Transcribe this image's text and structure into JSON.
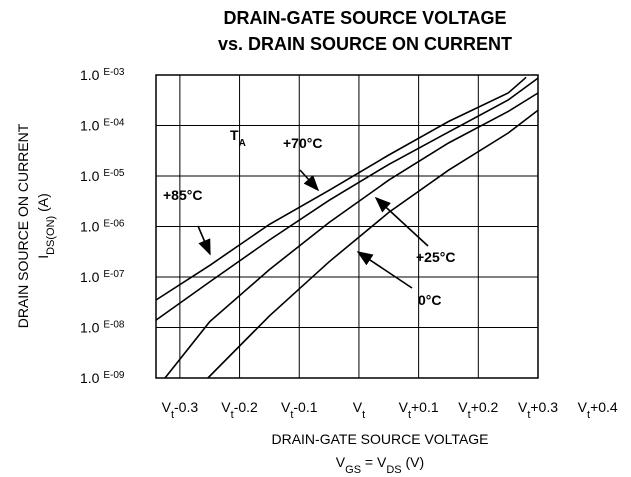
{
  "chart_data": {
    "type": "line",
    "title": [
      "DRAIN-GATE SOURCE VOLTAGE",
      "vs. DRAIN SOURCE ON CURRENT"
    ],
    "x_label": [
      "DRAIN-GATE SOURCE VOLTAGE",
      "VGS = VDS (V)"
    ],
    "y_label": [
      "DRAIN SOURCE ON CURRENT",
      "IDS(ON) (A)"
    ],
    "annotation": "TA",
    "log_y": true,
    "grid": true,
    "xlim": [
      -0.34,
      0.3
    ],
    "xticks": [
      {
        "value": -0.3,
        "label": "Vt-0.3"
      },
      {
        "value": -0.2,
        "label": "Vt-0.2"
      },
      {
        "value": -0.1,
        "label": "Vt-0.1"
      },
      {
        "value": 0,
        "label": "Vt"
      },
      {
        "value": 0.1,
        "label": "Vt+0.1"
      },
      {
        "value": 0.2,
        "label": "Vt+0.2"
      },
      {
        "value": 0.3,
        "label": "Vt+0.3"
      },
      {
        "value": 0.4,
        "label": "Vt+0.4"
      }
    ],
    "ylim": [
      1e-09,
      0.001
    ],
    "yticks": [
      {
        "value": 0.001,
        "label": "1.0 E-03"
      },
      {
        "value": 0.0001,
        "label": "1.0 E-04"
      },
      {
        "value": 1e-05,
        "label": "1.0 E-05"
      },
      {
        "value": 1e-06,
        "label": "1.0 E-06"
      },
      {
        "value": 1e-07,
        "label": "1.0 E-07"
      },
      {
        "value": 1e-08,
        "label": "1.0 E-08"
      },
      {
        "value": 1e-09,
        "label": "1.0 E-09"
      }
    ],
    "series": [
      {
        "name": "+85°C",
        "color": "#000000",
        "x": [
          -0.34,
          -0.25,
          -0.15,
          -0.05,
          0.05,
          0.15,
          0.25,
          0.28
        ],
        "values": [
          3.5e-08,
          1.7e-07,
          1.1e-06,
          5.2e-06,
          2.6e-05,
          0.00012,
          0.00044,
          0.0009
        ]
      },
      {
        "name": "+70°C",
        "color": "#000000",
        "x": [
          -0.34,
          -0.25,
          -0.15,
          -0.05,
          0.05,
          0.15,
          0.25,
          0.3
        ],
        "values": [
          1.4e-08,
          8e-08,
          5.4e-07,
          3.3e-06,
          1.7e-05,
          7.4e-05,
          0.00032,
          0.00087
        ]
      },
      {
        "name": "+25°C",
        "color": "#000000",
        "x": [
          -0.325,
          -0.25,
          -0.15,
          -0.05,
          0.05,
          0.15,
          0.25,
          0.3
        ],
        "values": [
          1e-09,
          1.3e-08,
          1.4e-07,
          1.2e-06,
          8.3e-06,
          4.5e-05,
          0.00019,
          0.00044
        ]
      },
      {
        "name": "0°C",
        "color": "#000000",
        "x": [
          -0.253,
          -0.15,
          -0.05,
          0.05,
          0.15,
          0.25,
          0.3
        ],
        "values": [
          1e-09,
          1.7e-08,
          2e-07,
          1.9e-06,
          1.3e-05,
          7.1e-05,
          0.0002
        ]
      }
    ]
  }
}
